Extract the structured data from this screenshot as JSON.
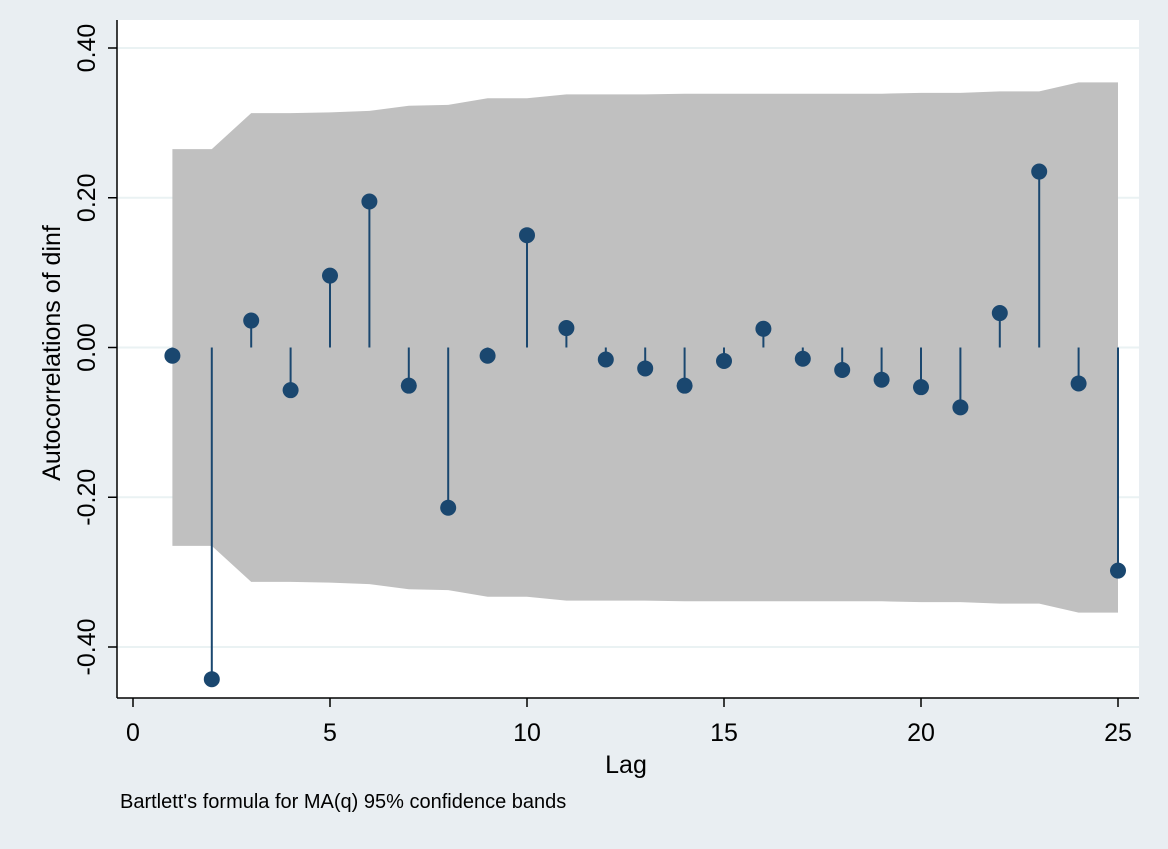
{
  "chart_data": {
    "type": "scatter",
    "subtype": "autocorrelation-stem",
    "xlabel": "Lag",
    "ylabel": "Autocorrelations of dinf",
    "note": "Bartlett's formula for MA(q) 95% confidence bands",
    "xlim": [
      0,
      25
    ],
    "ylim": [
      -0.46,
      0.4
    ],
    "xticks": [
      0,
      5,
      10,
      15,
      20,
      25
    ],
    "yticks": [
      -0.4,
      -0.2,
      0.0,
      0.2,
      0.4
    ],
    "ytick_labels": [
      "-0.40",
      "-0.20",
      "0.00",
      "0.20",
      "0.40"
    ],
    "grid": true,
    "lags": [
      1,
      2,
      3,
      4,
      5,
      6,
      7,
      8,
      9,
      10,
      11,
      12,
      13,
      14,
      15,
      16,
      17,
      18,
      19,
      20,
      21,
      22,
      23,
      24,
      25
    ],
    "acf": [
      -0.011,
      -0.443,
      0.036,
      -0.057,
      0.096,
      0.195,
      -0.051,
      -0.214,
      -0.011,
      0.15,
      0.026,
      -0.016,
      -0.028,
      -0.051,
      -0.018,
      0.025,
      -0.015,
      -0.03,
      -0.043,
      -0.053,
      -0.08,
      0.046,
      0.235,
      -0.048,
      -0.298
    ],
    "confidence_band": [
      0.265,
      0.265,
      0.313,
      0.313,
      0.314,
      0.316,
      0.323,
      0.324,
      0.333,
      0.333,
      0.338,
      0.338,
      0.338,
      0.339,
      0.339,
      0.339,
      0.339,
      0.339,
      0.339,
      0.34,
      0.34,
      0.342,
      0.342,
      0.354,
      0.354
    ],
    "colors": {
      "background": "#e9eef2",
      "plot_area": "#ffffff",
      "band": "#c0c0c0",
      "marker": "#1a476f",
      "grid": "#eaf2f3"
    }
  }
}
